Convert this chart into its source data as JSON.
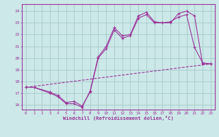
{
  "background_color": "#cce8e8",
  "grid_color": "#aacccc",
  "line_color": "#993399",
  "xlim": [
    -0.5,
    23.5
  ],
  "ylim": [
    15.6,
    24.6
  ],
  "yticks": [
    16,
    17,
    18,
    19,
    20,
    21,
    22,
    23,
    24
  ],
  "xticks": [
    0,
    1,
    2,
    3,
    4,
    5,
    6,
    7,
    8,
    9,
    10,
    11,
    12,
    13,
    14,
    15,
    16,
    17,
    18,
    19,
    20,
    21,
    22,
    23
  ],
  "xlabel": "Windchill (Refroidissement éolien,°C)",
  "series1_x": [
    0,
    1,
    3,
    4,
    5,
    6,
    7,
    8,
    9,
    10,
    11,
    12,
    13,
    14,
    15,
    16,
    17,
    18,
    19,
    20,
    21,
    22,
    23
  ],
  "series1_y": [
    17.5,
    17.5,
    17.0,
    16.7,
    16.1,
    16.1,
    15.8,
    17.2,
    20.1,
    21.0,
    22.6,
    21.9,
    22.0,
    23.6,
    23.9,
    23.1,
    23.0,
    23.0,
    23.8,
    24.0,
    23.6,
    19.5,
    19.5
  ],
  "series2_x": [
    0,
    1,
    3,
    4,
    5,
    6,
    7,
    8,
    9,
    10,
    11,
    12,
    13,
    14,
    15,
    16,
    17,
    18,
    19,
    20,
    21,
    22,
    23
  ],
  "series2_y": [
    17.5,
    17.5,
    17.1,
    16.8,
    16.2,
    16.3,
    15.9,
    17.1,
    20.0,
    20.8,
    22.4,
    21.7,
    21.9,
    23.4,
    23.7,
    23.0,
    23.0,
    23.1,
    23.5,
    23.7,
    20.9,
    19.6,
    19.5
  ],
  "series3_x": [
    0,
    23
  ],
  "series3_y": [
    17.5,
    19.5
  ]
}
